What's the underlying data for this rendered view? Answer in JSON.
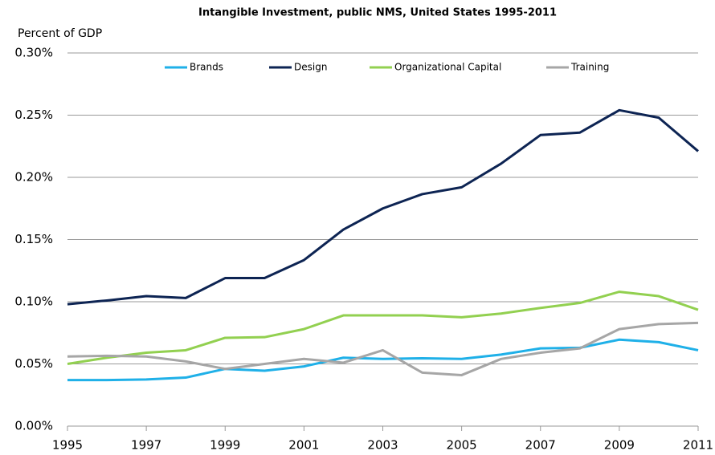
{
  "chart_data": {
    "type": "line",
    "title": "Intangible Investment, public NMS, United States 1995-2011",
    "y_label": "Percent of GDP",
    "x": [
      1995,
      1996,
      1997,
      1998,
      1999,
      2000,
      2001,
      2002,
      2003,
      2004,
      2005,
      2006,
      2007,
      2008,
      2009,
      2010,
      2011
    ],
    "xlim": [
      1995,
      2011
    ],
    "xticks": [
      1995,
      1997,
      1999,
      2001,
      2003,
      2005,
      2007,
      2009,
      2011
    ],
    "ylim": [
      0,
      0.3
    ],
    "yticks": [
      {
        "value": 0,
        "label": "0.00%"
      },
      {
        "value": 0.05,
        "label": "0.05%"
      },
      {
        "value": 0.1,
        "label": "0.10%"
      },
      {
        "value": 0.15,
        "label": "0.15%"
      },
      {
        "value": 0.2,
        "label": "0.20%"
      },
      {
        "value": 0.25,
        "label": "0.25%"
      },
      {
        "value": 0.3,
        "label": "0.30%"
      }
    ],
    "grid": true,
    "legend": "top",
    "series": [
      {
        "name": "Brands",
        "color": "#1fb0e8",
        "values": [
          0.037,
          0.037,
          0.0375,
          0.039,
          0.046,
          0.0445,
          0.048,
          0.055,
          0.054,
          0.0545,
          0.054,
          0.0575,
          0.0625,
          0.063,
          0.0695,
          0.0675,
          0.061
        ]
      },
      {
        "name": "Design",
        "color": "#0d2453",
        "values": [
          0.098,
          0.101,
          0.1045,
          0.103,
          0.119,
          0.119,
          0.1335,
          0.158,
          0.175,
          0.1865,
          0.192,
          0.211,
          0.234,
          0.236,
          0.254,
          0.248,
          0.221
        ]
      },
      {
        "name": "Organizational Capital",
        "color": "#92d050",
        "values": [
          0.05,
          0.055,
          0.059,
          0.061,
          0.071,
          0.0715,
          0.078,
          0.089,
          0.089,
          0.089,
          0.0875,
          0.0905,
          0.095,
          0.099,
          0.108,
          0.1045,
          0.0935
        ]
      },
      {
        "name": "Training",
        "color": "#a6a6a6",
        "values": [
          0.056,
          0.0565,
          0.056,
          0.052,
          0.046,
          0.05,
          0.054,
          0.051,
          0.061,
          0.043,
          0.041,
          0.054,
          0.059,
          0.0625,
          0.078,
          0.082,
          0.083
        ]
      }
    ]
  }
}
